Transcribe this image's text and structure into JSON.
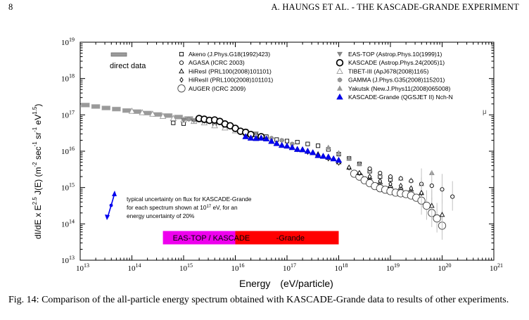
{
  "header": {
    "page_number": "8",
    "running_title": "A. HAUNGS ET AL. - THE KASCADE-GRANDE EXPERIMENT"
  },
  "caption": "Fig. 14: Comparison of the all-particle energy spectrum obtained with KASCADE-Grande data to results of other experiments.",
  "chart_data": {
    "type": "scatter",
    "xlabel_main": "Energy",
    "xlabel_unit": "(eV/particle)",
    "ylabel_parts": {
      "a": "dI/dE x E",
      "a_exp": "2.5",
      "b": " J(E) (m",
      "b_exp": "-2",
      "c": " sec",
      "c_exp": "-1",
      "d": " sr",
      "d_exp": "-1",
      "e": " eV",
      "e_exp": "1.5",
      "f": ")"
    },
    "x_log_range": [
      13,
      21
    ],
    "y_log_range": [
      13,
      19
    ],
    "x_ticks": [
      13,
      14,
      15,
      16,
      17,
      18,
      19,
      20,
      21
    ],
    "y_ticks": [
      13,
      14,
      15,
      16,
      17,
      18,
      19
    ],
    "tick_base": "10",
    "legend_left": [
      {
        "marker": "square",
        "label": "Akeno (J.Phys.G18(1992)423)"
      },
      {
        "marker": "circle-small",
        "label": "AGASA (ICRC 2003)"
      },
      {
        "marker": "triangle-open",
        "label": "HiResI (PRL100(2008)101101)"
      },
      {
        "marker": "diamond-open",
        "label": "HiResII (PRL100(2008)101101)"
      },
      {
        "marker": "circle-large",
        "label": "AUGER (ICRC 2009)"
      }
    ],
    "legend_right": [
      {
        "marker": "triangle-down-gray",
        "label": "EAS-TOP (Astrop.Phys.10(1999)1)"
      },
      {
        "marker": "circle-bold",
        "label": "KASCADE (Astrop.Phys.24(2005)1)"
      },
      {
        "marker": "triangle-open-gray",
        "label": "TIBET-III (ApJ678(2008)1165)"
      },
      {
        "marker": "star-gray",
        "label": "GAMMA (J.Phys.G35(2008)115201)"
      },
      {
        "marker": "triangle-gray",
        "label": "Yakutsk (New.J.Phys11(2008)065008)"
      },
      {
        "marker": "triangle-blue",
        "label": "KASCADE-Grande (QGSJET II) Nch-N"
      }
    ],
    "direct_data_label": "direct data",
    "mu_label": "μ",
    "uncertainty_note": [
      "typical uncertainty on flux for KASCADE-Grande",
      "for each spectrum shown at 10",
      "17",
      " eV, for an",
      "energy uncertainty of 20%"
    ],
    "range_bars": [
      {
        "label": "EAS-TOP / KASCADE",
        "from": 14.6,
        "to": 16.9,
        "color": "#ee00ee"
      },
      {
        "label": "-Grande",
        "from": 16.0,
        "to": 18.0,
        "color": "#ff0000"
      }
    ],
    "series": [
      {
        "name": "direct data",
        "x": [
          13.1,
          13.3,
          13.5,
          13.7,
          13.9,
          14.1,
          14.3,
          14.5,
          14.7,
          14.9,
          15.1,
          15.3,
          15.5
        ],
        "y": [
          17.27,
          17.23,
          17.19,
          17.16,
          17.12,
          17.09,
          17.05,
          17.01,
          16.98,
          16.94,
          16.9,
          16.86,
          16.83
        ]
      },
      {
        "name": "KASCADE-Grande (QGSJET II) Nch-N",
        "x": [
          16.2,
          16.3,
          16.4,
          16.5,
          16.6,
          16.7,
          16.8,
          16.9,
          17.0,
          17.1,
          17.2,
          17.3,
          17.4,
          17.5,
          17.6,
          17.7,
          17.8,
          17.9,
          18.0
        ],
        "y": [
          16.4,
          16.36,
          16.35,
          16.36,
          16.34,
          16.27,
          16.21,
          16.16,
          16.14,
          16.1,
          16.05,
          16.04,
          16.0,
          15.96,
          15.88,
          15.86,
          15.84,
          15.79,
          15.75
        ]
      },
      {
        "name": "KASCADE (Astrop.Phys.24(2005)1)",
        "x": [
          15.3,
          15.4,
          15.5,
          15.6,
          15.7,
          15.8,
          15.9,
          16.0,
          16.1,
          16.2,
          16.3,
          16.5
        ],
        "y": [
          16.9,
          16.88,
          16.85,
          16.86,
          16.82,
          16.75,
          16.7,
          16.63,
          16.55,
          16.52,
          16.46,
          16.4
        ]
      },
      {
        "name": "AUGER (ICRC 2009)",
        "x": [
          18.3,
          18.4,
          18.5,
          18.6,
          18.7,
          18.8,
          18.9,
          19.0,
          19.1,
          19.2,
          19.3,
          19.4,
          19.5,
          19.6,
          19.7,
          19.8,
          19.9,
          20.0
        ],
        "y": [
          15.38,
          15.3,
          15.2,
          15.12,
          15.04,
          14.98,
          14.94,
          14.9,
          14.86,
          14.84,
          14.82,
          14.78,
          14.72,
          14.64,
          14.5,
          14.3,
          14.15,
          13.95
        ]
      },
      {
        "name": "Akeno (J.Phys.G18(1992)423)",
        "x": [
          14.8,
          15.0,
          15.2,
          15.4,
          15.6,
          15.8,
          16.0,
          16.2,
          16.4,
          16.6,
          16.8,
          17.0,
          17.2,
          17.4,
          17.6,
          17.8,
          18.0,
          18.2,
          18.4,
          18.6,
          18.8,
          19.0
        ],
        "y": [
          16.78,
          16.76,
          16.82,
          16.8,
          16.72,
          16.7,
          16.6,
          16.48,
          16.45,
          16.4,
          16.32,
          16.28,
          16.25,
          16.2,
          16.15,
          16.05,
          15.92,
          15.8,
          15.65,
          15.45,
          15.3,
          15.22
        ]
      },
      {
        "name": "AGASA (ICRC 2003)",
        "x": [
          18.6,
          18.8,
          19.0,
          19.2,
          19.4,
          19.6,
          19.8,
          20.0,
          20.2
        ],
        "y": [
          15.52,
          15.4,
          15.3,
          15.25,
          15.18,
          15.1,
          15.05,
          14.95,
          14.75
        ]
      },
      {
        "name": "HiResI (PRL100(2008)101101)",
        "x": [
          17.4,
          17.6,
          17.8,
          18.0,
          18.2,
          18.4,
          18.6,
          18.8,
          19.0,
          19.2,
          19.4,
          19.6,
          19.8,
          20.0
        ],
        "y": [
          16.0,
          15.92,
          15.82,
          15.7,
          15.55,
          15.4,
          15.28,
          15.15,
          15.05,
          15.0,
          14.95,
          14.85,
          14.5,
          14.25
        ]
      },
      {
        "name": "HiResII (PRL100(2008)101101)",
        "x": [
          17.2,
          17.4,
          17.6,
          17.8,
          18.0,
          18.2,
          18.4,
          18.6,
          18.8,
          19.0,
          19.2,
          19.4,
          19.6
        ],
        "y": [
          16.05,
          15.98,
          15.9,
          15.8,
          15.68,
          15.55,
          15.4,
          15.3,
          15.18,
          15.1,
          15.05,
          14.98,
          14.85
        ]
      },
      {
        "name": "EAS-TOP (Astrop.Phys.10(1999)1)",
        "x": [
          15.0,
          15.2,
          15.4,
          15.6,
          15.8,
          16.0,
          16.2,
          16.4
        ],
        "y": [
          16.85,
          16.84,
          16.82,
          16.8,
          16.72,
          16.62,
          16.55,
          16.48
        ]
      },
      {
        "name": "TIBET-III (ApJ678(2008)1165)",
        "x": [
          14.0,
          14.2,
          14.4,
          14.6,
          14.8,
          15.0,
          15.2,
          15.4,
          15.6,
          15.8,
          16.0,
          16.2
        ],
        "y": [
          17.1,
          17.06,
          17.02,
          16.96,
          16.9,
          16.86,
          16.82,
          16.78,
          16.7,
          16.64,
          16.56,
          16.5
        ]
      },
      {
        "name": "GAMMA (J.Phys.G35(2008)115201)",
        "x": [
          15.1,
          15.3,
          15.5,
          15.7,
          15.9,
          16.1,
          16.3,
          16.5,
          16.7,
          16.9,
          17.1
        ],
        "y": [
          16.88,
          16.86,
          16.84,
          16.78,
          16.7,
          16.58,
          16.48,
          16.4,
          16.36,
          16.3,
          16.2
        ]
      },
      {
        "name": "Yakutsk (New.J.Phys11(2008)065008)",
        "x": [
          17.8,
          18.0,
          18.2,
          18.4,
          18.6,
          18.8,
          19.0,
          19.2,
          19.4,
          19.6,
          19.8
        ],
        "y": [
          16.1,
          15.95,
          15.8,
          15.65,
          15.5,
          15.38,
          15.3,
          15.25,
          15.2,
          15.1,
          15.4
        ]
      }
    ]
  }
}
